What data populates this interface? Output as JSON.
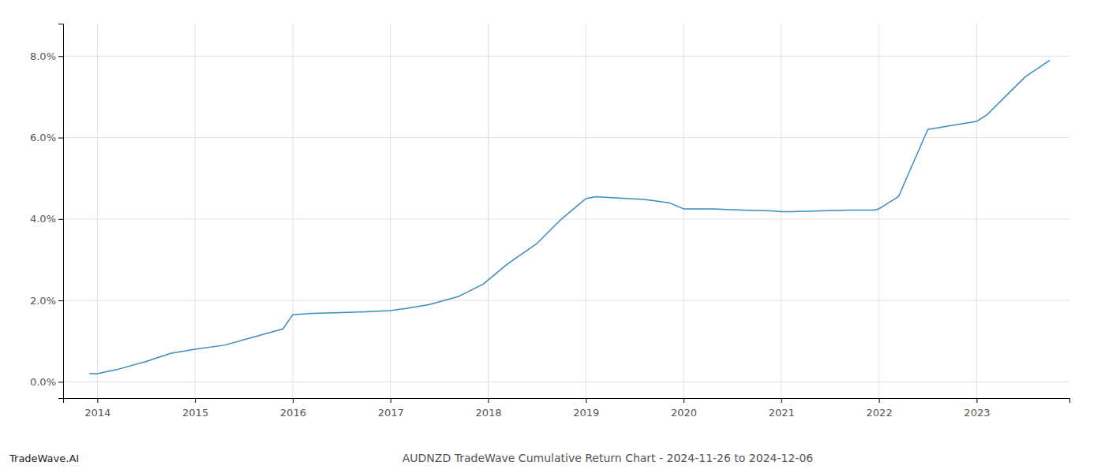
{
  "chart_data": {
    "type": "line",
    "title": "AUDNZD TradeWave Cumulative Return Chart - 2024-11-26 to 2024-12-06",
    "annotations": [
      "TradeWave.AI"
    ],
    "x": [
      2013.92,
      2014.0,
      2014.2,
      2014.5,
      2014.75,
      2015.0,
      2015.3,
      2015.6,
      2015.9,
      2016.0,
      2016.2,
      2016.5,
      2016.75,
      2017.0,
      2017.15,
      2017.4,
      2017.7,
      2017.95,
      2018.2,
      2018.5,
      2018.75,
      2019.0,
      2019.1,
      2019.3,
      2019.6,
      2019.85,
      2020.0,
      2020.3,
      2020.6,
      2020.9,
      2021.0,
      2021.1,
      2021.4,
      2021.7,
      2021.95,
      2022.0,
      2022.2,
      2022.5,
      2022.75,
      2023.0,
      2023.1,
      2023.5,
      2023.75
    ],
    "values": [
      0.002,
      0.002,
      0.003,
      0.005,
      0.007,
      0.008,
      0.009,
      0.011,
      0.013,
      0.0165,
      0.0168,
      0.017,
      0.0172,
      0.0175,
      0.018,
      0.019,
      0.021,
      0.024,
      0.029,
      0.034,
      0.04,
      0.045,
      0.0455,
      0.0452,
      0.0448,
      0.044,
      0.0425,
      0.0425,
      0.0422,
      0.042,
      0.0418,
      0.0418,
      0.042,
      0.0422,
      0.0422,
      0.0425,
      0.0455,
      0.062,
      0.063,
      0.064,
      0.0655,
      0.075,
      0.079
    ],
    "color": "#3a8cbf",
    "xlim": [
      2013.65,
      2023.95
    ],
    "xticks": [
      2014,
      2015,
      2016,
      2017,
      2018,
      2019,
      2020,
      2021,
      2022,
      2023
    ],
    "ylim": [
      -0.004,
      0.088
    ],
    "yticks": [
      {
        "value": 0.0,
        "label": "0.0%"
      },
      {
        "value": 0.02,
        "label": "2.0%"
      },
      {
        "value": 0.04,
        "label": "4.0%"
      },
      {
        "value": 0.06,
        "label": "6.0%"
      },
      {
        "value": 0.08,
        "label": "8.0%"
      }
    ],
    "grid": true
  }
}
